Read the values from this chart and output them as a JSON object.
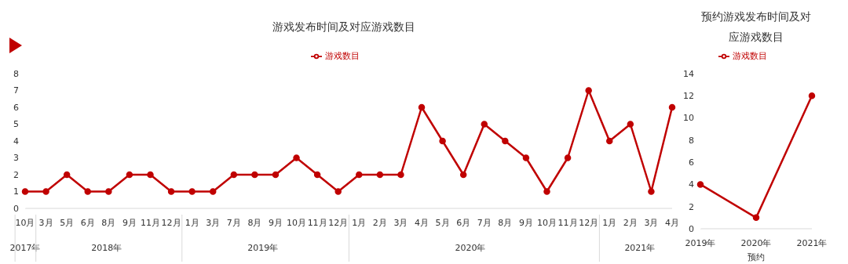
{
  "chart_data": [
    {
      "type": "line",
      "title": "游戏发布时间及对应游戏数目",
      "categories": [
        "10月",
        "3月",
        "5月",
        "6月",
        "8月",
        "9月",
        "11月",
        "12月",
        "1月",
        "3月",
        "7月",
        "8月",
        "9月",
        "10月",
        "11月",
        "12月",
        "1月",
        "2月",
        "3月",
        "4月",
        "5月",
        "6月",
        "7月",
        "8月",
        "9月",
        "10月",
        "11月",
        "12月",
        "1月",
        "2月",
        "3月",
        "4月"
      ],
      "annotations": [
        "2017年",
        "2018年",
        "2019年",
        "2020年",
        "2021年"
      ],
      "series": [
        {
          "name": "游戏数目",
          "color": "#c00000",
          "values": [
            1,
            1,
            2,
            1,
            1,
            2,
            2,
            1,
            1,
            1,
            2,
            2,
            2,
            3,
            2,
            1,
            2,
            2,
            2,
            6,
            4,
            2,
            5,
            4,
            3,
            1,
            3,
            7,
            4,
            5,
            1,
            6
          ]
        }
      ],
      "ylim": [
        0,
        8
      ],
      "yticks": [
        0,
        1,
        2,
        3,
        4,
        5,
        6,
        7,
        8
      ],
      "legend": "top",
      "marker": "circle"
    },
    {
      "type": "line",
      "title": "预约游戏发布时间及对应游戏数目",
      "xlabel": "预约",
      "categories": [
        "2019年",
        "2020年",
        "2021年"
      ],
      "series": [
        {
          "name": "游戏数目",
          "color": "#c00000",
          "values": [
            4,
            1,
            12
          ]
        }
      ],
      "ylim": [
        0,
        14
      ],
      "yticks": [
        0,
        2,
        4,
        6,
        8,
        10,
        12,
        14
      ],
      "legend": "top",
      "marker": "circle"
    }
  ]
}
